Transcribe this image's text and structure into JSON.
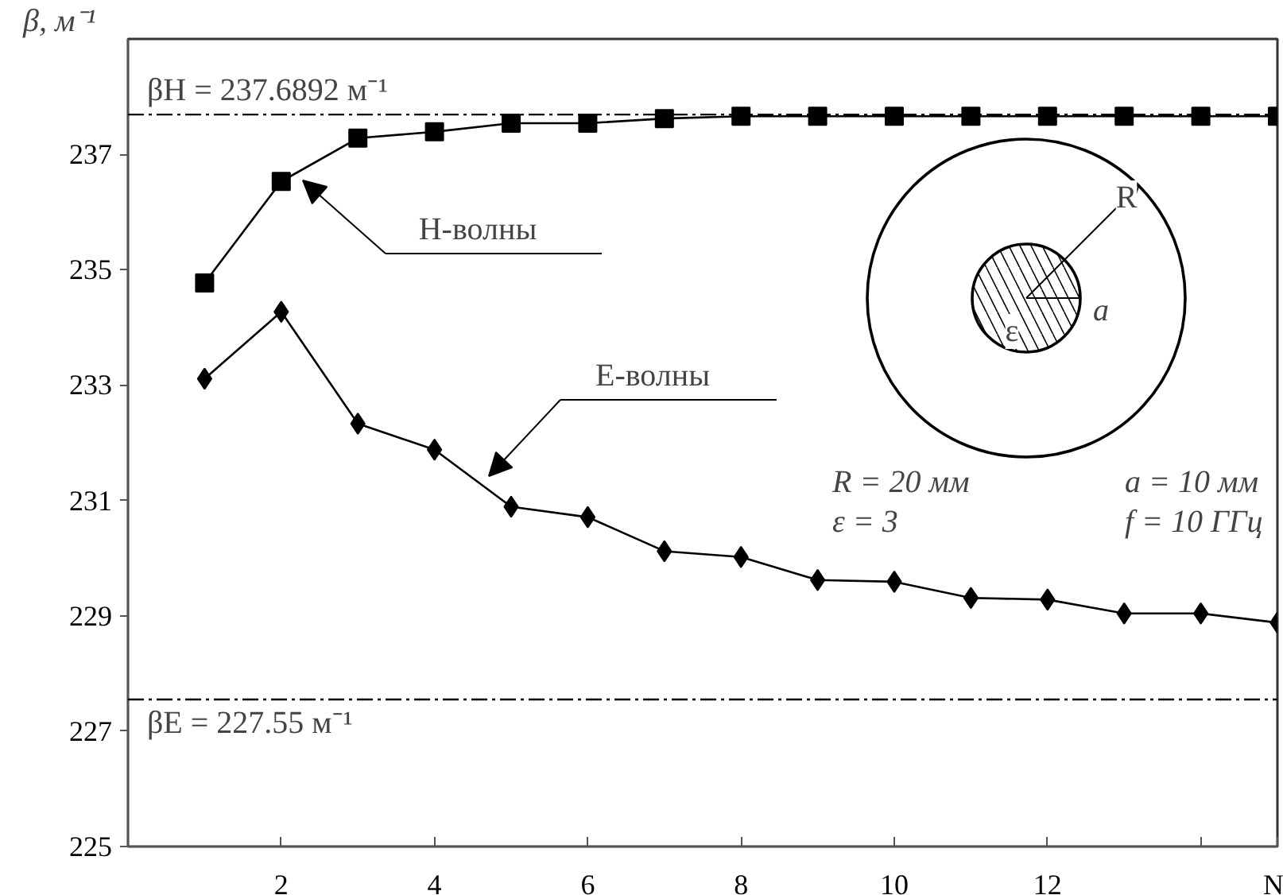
{
  "chart_data": {
    "type": "line",
    "ylabel": "β, м⁻¹",
    "x": [
      1,
      2,
      3,
      4,
      5,
      6,
      7,
      8,
      9,
      10,
      11,
      12,
      13,
      14,
      15
    ],
    "series": [
      {
        "color": "#000000",
        "marker": "square",
        "values": [
          234.77,
          236.53,
          237.28,
          237.39,
          237.54,
          237.54,
          237.62,
          237.66,
          237.66,
          237.66,
          237.66,
          237.66,
          237.66,
          237.66,
          237.66
        ]
      },
      {
        "color": "#000000",
        "marker": "diamond",
        "values": [
          233.11,
          234.27,
          232.33,
          231.88,
          230.89,
          230.71,
          230.12,
          230.02,
          229.62,
          229.59,
          229.31,
          229.28,
          229.04,
          229.04,
          228.88
        ]
      }
    ],
    "xlim": [
      0,
      15
    ],
    "ylim": [
      225,
      239
    ],
    "xticks": [
      2,
      4,
      6,
      8,
      10,
      12,
      {
        "value": 14,
        "label": null
      },
      {
        "value": 15,
        "label": "N"
      }
    ],
    "yticks": [
      225,
      227,
      229,
      231,
      233,
      235,
      237
    ],
    "ref_lines": [
      {
        "axis": "y",
        "value": 237.6892,
        "label": "βH = 237.6892 м⁻¹",
        "line_style": "dashdot",
        "color": "#000000"
      },
      {
        "axis": "y",
        "value": 227.55,
        "label": "βE = 227.55  м⁻¹",
        "line_style": "dashdot",
        "color": "#000000"
      }
    ],
    "annotations": [
      "Н-волны",
      "Е-волны",
      "R = 20 мм",
      "a = 10 мм",
      "ε = 3",
      "f = 10 ГГц",
      "R",
      "ε",
      "a"
    ],
    "grid": false,
    "line_style": "solid"
  }
}
